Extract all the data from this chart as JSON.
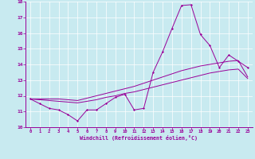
{
  "xlabel": "Windchill (Refroidissement éolien,°C)",
  "bg_color": "#c8eaf0",
  "line_color": "#990099",
  "grid_color": "#ffffff",
  "xlim": [
    -0.5,
    23.5
  ],
  "ylim": [
    10,
    18
  ],
  "yticks": [
    10,
    11,
    12,
    13,
    14,
    15,
    16,
    17,
    18
  ],
  "xticks": [
    0,
    1,
    2,
    3,
    4,
    5,
    6,
    7,
    8,
    9,
    10,
    11,
    12,
    13,
    14,
    15,
    16,
    17,
    18,
    19,
    20,
    21,
    22,
    23
  ],
  "line1_x": [
    0,
    1,
    2,
    3,
    4,
    5,
    6,
    7,
    8,
    9,
    10,
    11,
    12,
    13,
    14,
    15,
    16,
    17,
    18,
    19,
    20,
    21,
    22,
    23
  ],
  "line1_y": [
    11.8,
    11.5,
    11.2,
    11.1,
    10.8,
    10.4,
    11.1,
    11.1,
    11.5,
    11.9,
    12.1,
    11.1,
    11.2,
    13.5,
    14.8,
    16.3,
    17.75,
    17.8,
    15.9,
    15.2,
    13.8,
    14.6,
    14.2,
    13.8
  ],
  "line2_x": [
    0,
    1,
    2,
    3,
    4,
    5,
    6,
    7,
    8,
    9,
    10,
    11,
    12,
    13,
    14,
    15,
    16,
    17,
    18,
    19,
    20,
    21,
    22,
    23
  ],
  "line2_y": [
    11.8,
    11.75,
    11.7,
    11.65,
    11.6,
    11.55,
    11.65,
    11.75,
    11.9,
    12.0,
    12.15,
    12.25,
    12.4,
    12.55,
    12.7,
    12.85,
    13.0,
    13.15,
    13.3,
    13.45,
    13.55,
    13.65,
    13.7,
    13.1
  ],
  "line3_x": [
    0,
    1,
    2,
    3,
    4,
    5,
    6,
    7,
    8,
    9,
    10,
    11,
    12,
    13,
    14,
    15,
    16,
    17,
    18,
    19,
    20,
    21,
    22,
    23
  ],
  "line3_y": [
    11.8,
    11.8,
    11.8,
    11.8,
    11.75,
    11.7,
    11.85,
    12.0,
    12.15,
    12.3,
    12.45,
    12.6,
    12.8,
    13.0,
    13.2,
    13.4,
    13.6,
    13.75,
    13.9,
    14.0,
    14.1,
    14.2,
    14.25,
    13.2
  ]
}
